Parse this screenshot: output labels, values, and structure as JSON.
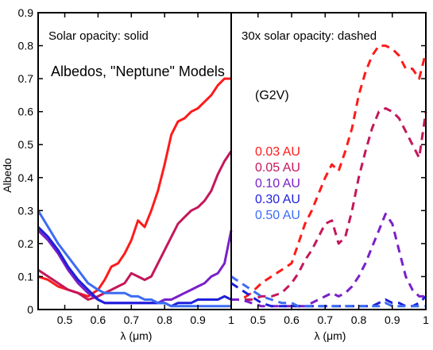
{
  "chart_data": {
    "type": "line",
    "title": "Albedos, \"Neptune\" Models",
    "ylabel": "Albedo",
    "ylim": [
      0,
      0.9
    ],
    "yticks": [
      "0",
      "0.1",
      "0.2",
      "0.3",
      "0.4",
      "0.5",
      "0.6",
      "0.7",
      "0.8",
      "0.9"
    ],
    "star_label": "(G2V)",
    "colors": {
      "0.03 AU": "#ff1a1a",
      "0.05 AU": "#c4175a",
      "0.10 AU": "#7a1fc9",
      "0.30 AU": "#1f1fdb",
      "0.50 AU": "#3c6cf5"
    },
    "panels": [
      {
        "name": "left",
        "annotation": "Solar opacity: solid",
        "line_style": "solid",
        "xlabel": "λ (μm)",
        "xlim": [
          0.42,
          1.0
        ],
        "xticks": [
          "0.5",
          "0.6",
          "0.7",
          "0.8",
          "0.9",
          "1"
        ],
        "series": [
          {
            "name": "0.03 AU",
            "x": [
              0.42,
              0.45,
              0.48,
              0.51,
              0.54,
              0.57,
              0.6,
              0.62,
              0.64,
              0.66,
              0.68,
              0.7,
              0.72,
              0.74,
              0.76,
              0.78,
              0.8,
              0.82,
              0.84,
              0.86,
              0.88,
              0.9,
              0.92,
              0.94,
              0.96,
              0.98,
              1.0
            ],
            "y": [
              0.1,
              0.09,
              0.07,
              0.06,
              0.05,
              0.04,
              0.06,
              0.09,
              0.13,
              0.14,
              0.17,
              0.21,
              0.27,
              0.25,
              0.3,
              0.36,
              0.44,
              0.53,
              0.57,
              0.58,
              0.6,
              0.61,
              0.63,
              0.65,
              0.68,
              0.7,
              0.7
            ]
          },
          {
            "name": "0.05 AU",
            "x": [
              0.42,
              0.45,
              0.48,
              0.51,
              0.54,
              0.57,
              0.6,
              0.62,
              0.64,
              0.66,
              0.68,
              0.7,
              0.72,
              0.74,
              0.76,
              0.78,
              0.8,
              0.82,
              0.84,
              0.86,
              0.88,
              0.9,
              0.92,
              0.94,
              0.96,
              0.98,
              1.0
            ],
            "y": [
              0.12,
              0.1,
              0.08,
              0.06,
              0.05,
              0.03,
              0.04,
              0.05,
              0.06,
              0.07,
              0.08,
              0.11,
              0.1,
              0.09,
              0.1,
              0.14,
              0.18,
              0.22,
              0.26,
              0.28,
              0.3,
              0.31,
              0.33,
              0.36,
              0.41,
              0.45,
              0.48
            ]
          },
          {
            "name": "0.10 AU",
            "x": [
              0.42,
              0.45,
              0.48,
              0.51,
              0.54,
              0.57,
              0.6,
              0.62,
              0.64,
              0.66,
              0.68,
              0.7,
              0.72,
              0.74,
              0.76,
              0.78,
              0.8,
              0.82,
              0.84,
              0.86,
              0.88,
              0.9,
              0.92,
              0.94,
              0.96,
              0.98,
              1.0
            ],
            "y": [
              0.24,
              0.21,
              0.17,
              0.12,
              0.08,
              0.05,
              0.03,
              0.02,
              0.02,
              0.02,
              0.02,
              0.02,
              0.02,
              0.02,
              0.02,
              0.02,
              0.03,
              0.03,
              0.04,
              0.05,
              0.06,
              0.07,
              0.08,
              0.1,
              0.11,
              0.14,
              0.24
            ]
          },
          {
            "name": "0.30 AU",
            "x": [
              0.42,
              0.45,
              0.48,
              0.51,
              0.54,
              0.57,
              0.6,
              0.62,
              0.64,
              0.66,
              0.68,
              0.7,
              0.72,
              0.74,
              0.76,
              0.78,
              0.8,
              0.82,
              0.84,
              0.86,
              0.88,
              0.9,
              0.92,
              0.94,
              0.96,
              0.98,
              1.0
            ],
            "y": [
              0.25,
              0.22,
              0.18,
              0.13,
              0.09,
              0.06,
              0.03,
              0.02,
              0.02,
              0.02,
              0.02,
              0.02,
              0.02,
              0.02,
              0.02,
              0.02,
              0.02,
              0.01,
              0.02,
              0.02,
              0.02,
              0.03,
              0.03,
              0.03,
              0.03,
              0.04,
              0.03
            ]
          },
          {
            "name": "0.50 AU",
            "x": [
              0.42,
              0.45,
              0.48,
              0.51,
              0.54,
              0.57,
              0.6,
              0.62,
              0.64,
              0.66,
              0.68,
              0.7,
              0.72,
              0.74,
              0.76,
              0.78,
              0.8,
              0.82,
              0.84,
              0.86,
              0.88,
              0.9,
              0.92,
              0.94,
              0.96,
              0.98,
              1.0
            ],
            "y": [
              0.3,
              0.25,
              0.2,
              0.16,
              0.12,
              0.08,
              0.06,
              0.05,
              0.05,
              0.05,
              0.05,
              0.04,
              0.04,
              0.03,
              0.03,
              0.02,
              0.02,
              0.01,
              0.01,
              0.01,
              0.01,
              0.01,
              0.01,
              0.01,
              0.01,
              0.01,
              0.01
            ]
          }
        ]
      },
      {
        "name": "right",
        "annotation": "30x solar opacity: dashed",
        "line_style": "dashed",
        "xlabel": "λ (μm)",
        "xlim": [
          0.42,
          1.0
        ],
        "xticks": [
          "0.5",
          "0.6",
          "0.7",
          "0.8",
          "0.9",
          "1"
        ],
        "series": [
          {
            "name": "0.03 AU",
            "x": [
              0.42,
              0.45,
              0.48,
              0.51,
              0.54,
              0.57,
              0.6,
              0.62,
              0.64,
              0.66,
              0.68,
              0.7,
              0.72,
              0.74,
              0.76,
              0.78,
              0.8,
              0.82,
              0.84,
              0.86,
              0.88,
              0.9,
              0.92,
              0.94,
              0.96,
              0.98,
              1.0
            ],
            "y": [
              0.03,
              0.03,
              0.05,
              0.08,
              0.1,
              0.12,
              0.14,
              0.2,
              0.26,
              0.3,
              0.35,
              0.4,
              0.44,
              0.42,
              0.48,
              0.55,
              0.65,
              0.72,
              0.77,
              0.8,
              0.8,
              0.79,
              0.77,
              0.73,
              0.73,
              0.7,
              0.78
            ]
          },
          {
            "name": "0.05 AU",
            "x": [
              0.42,
              0.45,
              0.48,
              0.51,
              0.54,
              0.57,
              0.6,
              0.62,
              0.64,
              0.66,
              0.68,
              0.7,
              0.72,
              0.74,
              0.76,
              0.78,
              0.8,
              0.82,
              0.84,
              0.86,
              0.88,
              0.9,
              0.92,
              0.94,
              0.96,
              0.98,
              1.0
            ],
            "y": [
              0.03,
              0.03,
              0.03,
              0.04,
              0.04,
              0.05,
              0.08,
              0.11,
              0.15,
              0.18,
              0.22,
              0.26,
              0.27,
              0.2,
              0.22,
              0.3,
              0.4,
              0.48,
              0.55,
              0.6,
              0.61,
              0.6,
              0.58,
              0.54,
              0.5,
              0.46,
              0.6
            ]
          },
          {
            "name": "0.10 AU",
            "x": [
              0.42,
              0.45,
              0.48,
              0.51,
              0.54,
              0.57,
              0.6,
              0.62,
              0.64,
              0.66,
              0.68,
              0.7,
              0.72,
              0.74,
              0.76,
              0.78,
              0.8,
              0.82,
              0.84,
              0.86,
              0.88,
              0.9,
              0.92,
              0.94,
              0.96,
              0.98,
              1.0
            ],
            "y": [
              0.03,
              0.03,
              0.02,
              0.01,
              0.01,
              0.01,
              0.01,
              0.01,
              0.01,
              0.02,
              0.03,
              0.04,
              0.05,
              0.04,
              0.05,
              0.07,
              0.1,
              0.14,
              0.19,
              0.24,
              0.29,
              0.26,
              0.18,
              0.1,
              0.06,
              0.04,
              0.04
            ]
          },
          {
            "name": "0.30 AU",
            "x": [
              0.42,
              0.45,
              0.48,
              0.51,
              0.54,
              0.57,
              0.6,
              0.62,
              0.64,
              0.66,
              0.68,
              0.7,
              0.72,
              0.74,
              0.76,
              0.78,
              0.8,
              0.82,
              0.84,
              0.86,
              0.88,
              0.9,
              0.92,
              0.94,
              0.96,
              0.98,
              1.0
            ],
            "y": [
              0.08,
              0.06,
              0.04,
              0.02,
              0.01,
              0.01,
              0.01,
              0.01,
              0.01,
              0.01,
              0.01,
              0.01,
              0.01,
              0.01,
              0.01,
              0.01,
              0.01,
              0.01,
              0.01,
              0.02,
              0.03,
              0.02,
              0.02,
              0.01,
              0.01,
              0.02,
              0.04
            ]
          },
          {
            "name": "0.50 AU",
            "x": [
              0.42,
              0.45,
              0.48,
              0.51,
              0.54,
              0.57,
              0.6,
              0.62,
              0.64,
              0.66,
              0.68,
              0.7,
              0.72,
              0.74,
              0.76,
              0.78,
              0.8,
              0.82,
              0.84,
              0.86,
              0.88,
              0.9,
              0.92,
              0.94,
              0.96,
              0.98,
              1.0
            ],
            "y": [
              0.1,
              0.08,
              0.06,
              0.04,
              0.03,
              0.02,
              0.02,
              0.01,
              0.01,
              0.01,
              0.01,
              0.01,
              0.01,
              0.01,
              0.01,
              0.01,
              0.01,
              0.01,
              0.01,
              0.01,
              0.02,
              0.01,
              0.01,
              0.01,
              0.01,
              0.01,
              0.01
            ]
          }
        ]
      }
    ]
  }
}
